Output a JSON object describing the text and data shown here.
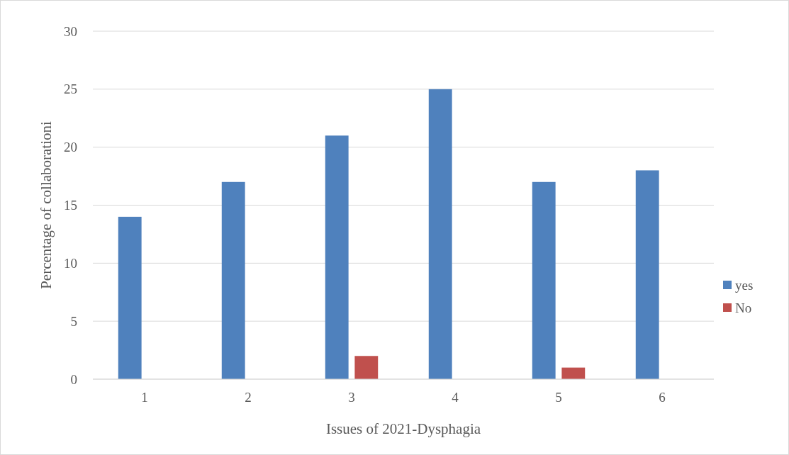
{
  "chart_data": {
    "type": "bar",
    "xlabel": "Issues of 2021-Dysphagia",
    "ylabel": "Percentage of collaborationi",
    "categories": [
      "1",
      "2",
      "3",
      "4",
      "5",
      "6"
    ],
    "series": [
      {
        "name": "yes",
        "color": "#4f81bd",
        "values": [
          14,
          17,
          21,
          25,
          17,
          18
        ]
      },
      {
        "name": "No",
        "color": "#c0504d",
        "values": [
          0,
          0,
          2,
          0,
          1,
          0
        ]
      }
    ],
    "ylim": [
      0,
      30
    ],
    "yticks": [
      0,
      5,
      10,
      15,
      20,
      25,
      30
    ],
    "grid": "y",
    "legend": "right"
  }
}
